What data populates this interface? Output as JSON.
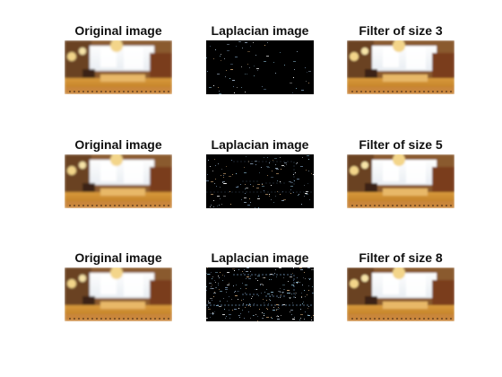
{
  "figure": {
    "rows": [
      {
        "original_title": "Original image",
        "laplacian_title": "Laplacian image",
        "filter_title": "Filter of size 3",
        "filter_size": 3
      },
      {
        "original_title": "Original image",
        "laplacian_title": "Laplacian image",
        "filter_title": "Filter of size 5",
        "filter_size": 5
      },
      {
        "original_title": "Original image",
        "laplacian_title": "Laplacian image",
        "filter_title": "Filter of size 8",
        "filter_size": 8
      }
    ]
  },
  "colors": {
    "background": "#ffffff",
    "title_text": "#111111",
    "laplacian_background": "#000000",
    "photo_warm_light": "#f3d58a",
    "photo_window": "#e9eef3",
    "photo_table": "#b8741c",
    "photo_dark": "#3a2416"
  }
}
